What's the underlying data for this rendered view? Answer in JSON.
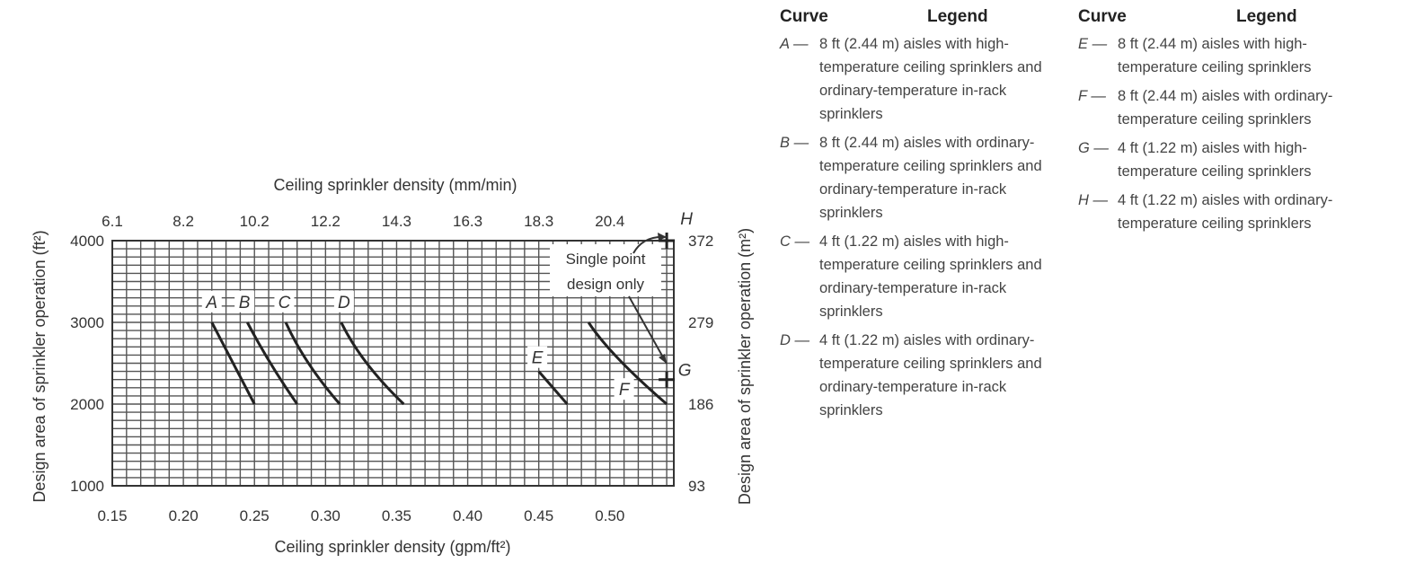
{
  "chart_data": {
    "type": "line",
    "xlabel": "Ceiling sprinkler density (gpm/ft²)",
    "xlabel_top": "Ceiling sprinkler density (mm/min)",
    "ylabel_left": "Design area of sprinkler operation (ft²)",
    "ylabel_right": "Design area of sprinkler operation (m²)",
    "xlim": [
      0.15,
      0.545
    ],
    "ylim": [
      1000,
      4000
    ],
    "grid": true,
    "x_ticks": [
      0.15,
      0.2,
      0.25,
      0.3,
      0.35,
      0.4,
      0.45,
      0.5
    ],
    "x_tick_labels": [
      "0.15",
      "0.20",
      "0.25",
      "0.30",
      "0.35",
      "0.40",
      "0.45",
      "0.50"
    ],
    "top_ticks": [
      {
        "x": 0.15,
        "label": "6.1"
      },
      {
        "x": 0.2,
        "label": "8.2"
      },
      {
        "x": 0.25,
        "label": "10.2"
      },
      {
        "x": 0.3,
        "label": "12.2"
      },
      {
        "x": 0.35,
        "label": "14.3"
      },
      {
        "x": 0.4,
        "label": "16.3"
      },
      {
        "x": 0.45,
        "label": "18.3"
      },
      {
        "x": 0.5,
        "label": "20.4"
      }
    ],
    "y_ticks": [
      1000,
      2000,
      3000,
      4000
    ],
    "y_tick_labels": [
      "1000",
      "2000",
      "3000",
      "4000"
    ],
    "right_ticks": [
      {
        "y": 1000,
        "label": "93"
      },
      {
        "y": 2000,
        "label": "186"
      },
      {
        "y": 3000,
        "label": "279"
      },
      {
        "y": 4000,
        "label": "372"
      }
    ],
    "series": [
      {
        "name": "A",
        "points": [
          [
            0.22,
            3000
          ],
          [
            0.235,
            2500
          ],
          [
            0.25,
            2000
          ]
        ]
      },
      {
        "name": "B",
        "points": [
          [
            0.245,
            3000
          ],
          [
            0.26,
            2500
          ],
          [
            0.28,
            2000
          ]
        ]
      },
      {
        "name": "C",
        "points": [
          [
            0.272,
            3000
          ],
          [
            0.285,
            2500
          ],
          [
            0.31,
            2000
          ]
        ]
      },
      {
        "name": "D",
        "points": [
          [
            0.311,
            3000
          ],
          [
            0.325,
            2500
          ],
          [
            0.355,
            2000
          ]
        ]
      },
      {
        "name": "E",
        "points": [
          [
            0.45,
            2400
          ],
          [
            0.47,
            2000
          ]
        ]
      },
      {
        "name": "F",
        "points": [
          [
            0.485,
            3000
          ],
          [
            0.5,
            2600
          ],
          [
            0.54,
            2000
          ]
        ]
      }
    ],
    "points": [
      {
        "name": "H",
        "x": 0.54,
        "y": 4000
      },
      {
        "name": "G",
        "x": 0.54,
        "y": 2300
      }
    ],
    "annotation": "Single point design only"
  },
  "legend": {
    "left": {
      "header_curve": "Curve",
      "header_legend": "Legend",
      "items": [
        {
          "letter": "A —",
          "text": "8 ft (2.44 m) aisles with high-temperature ceiling sprinklers and ordinary-temperature in-rack sprinklers"
        },
        {
          "letter": "B —",
          "text": "8 ft (2.44 m) aisles with ordinary-temperature ceiling sprinklers and ordinary-temperature in-rack sprinklers"
        },
        {
          "letter": "C —",
          "text": "4 ft (1.22 m) aisles with high-temperature ceiling sprinklers and ordinary-temperature in-rack sprinklers"
        },
        {
          "letter": "D —",
          "text": "4 ft (1.22 m) aisles with ordinary-temperature ceiling sprinklers and ordinary-temperature in-rack sprinklers"
        }
      ]
    },
    "right": {
      "header_curve": "Curve",
      "header_legend": "Legend",
      "items": [
        {
          "letter": "E —",
          "text": "8 ft (2.44 m) aisles with high-temperature ceiling sprinklers"
        },
        {
          "letter": "F —",
          "text": "8 ft (2.44 m) aisles with ordinary-temperature ceiling sprinklers"
        },
        {
          "letter": "G —",
          "text": "4 ft (1.22 m) aisles with high-temperature ceiling sprinklers"
        },
        {
          "letter": "H —",
          "text": "4 ft (1.22 m) aisles with ordinary-temperature ceiling sprinklers"
        }
      ]
    }
  }
}
